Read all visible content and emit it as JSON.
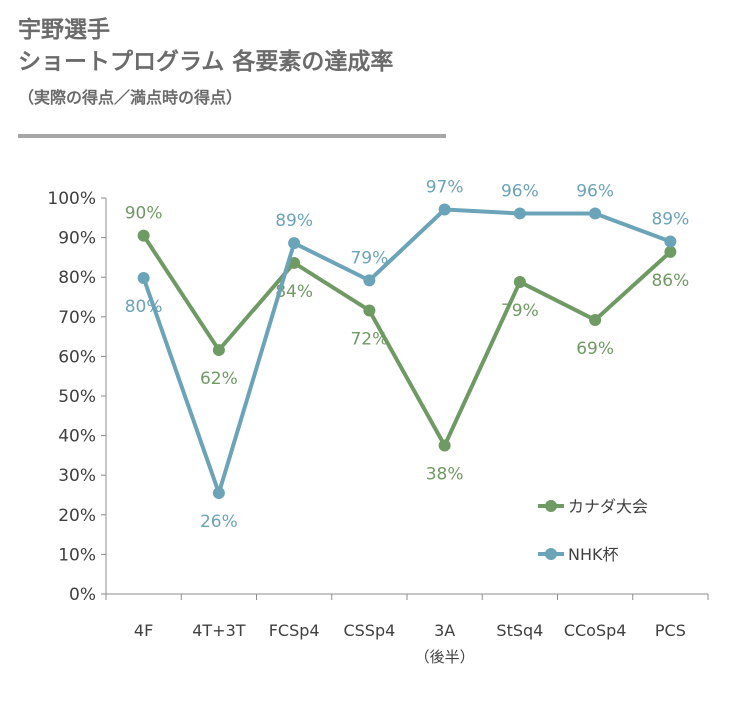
{
  "title": {
    "line1": "宇野選手",
    "line2": "ショートプログラム 各要素の達成率",
    "subtitle": "（実際の得点／満点時の得点）"
  },
  "chart_data": {
    "type": "line",
    "categories": [
      "4F",
      "4T+3T",
      "FCSp4",
      "CSSp4",
      "3A",
      "StSq4",
      "CCoSp4",
      "PCS"
    ],
    "category_sublabels": [
      "",
      "",
      "",
      "",
      "（後半）",
      "",
      "",
      ""
    ],
    "ylim": [
      0,
      100
    ],
    "yticks": [
      "0%",
      "10%",
      "20%",
      "30%",
      "40%",
      "50%",
      "60%",
      "70%",
      "80%",
      "90%",
      "100%"
    ],
    "series": [
      {
        "name": "カナダ大会",
        "color": "#6f9a64",
        "values": [
          90.5,
          61.6,
          83.6,
          71.6,
          37.5,
          78.8,
          69.2,
          86.4
        ],
        "labels": [
          "90%",
          "62%",
          "84%",
          "72%",
          "38%",
          "79%",
          "69%",
          "86%"
        ]
      },
      {
        "name": "NHK杯",
        "color": "#6ba3b8",
        "values": [
          79.8,
          25.5,
          88.6,
          79.2,
          97.1,
          96.1,
          96.1,
          89.0
        ],
        "labels": [
          "80%",
          "26%",
          "89%",
          "79%",
          "97%",
          "96%",
          "96%",
          "89%"
        ]
      }
    ]
  }
}
